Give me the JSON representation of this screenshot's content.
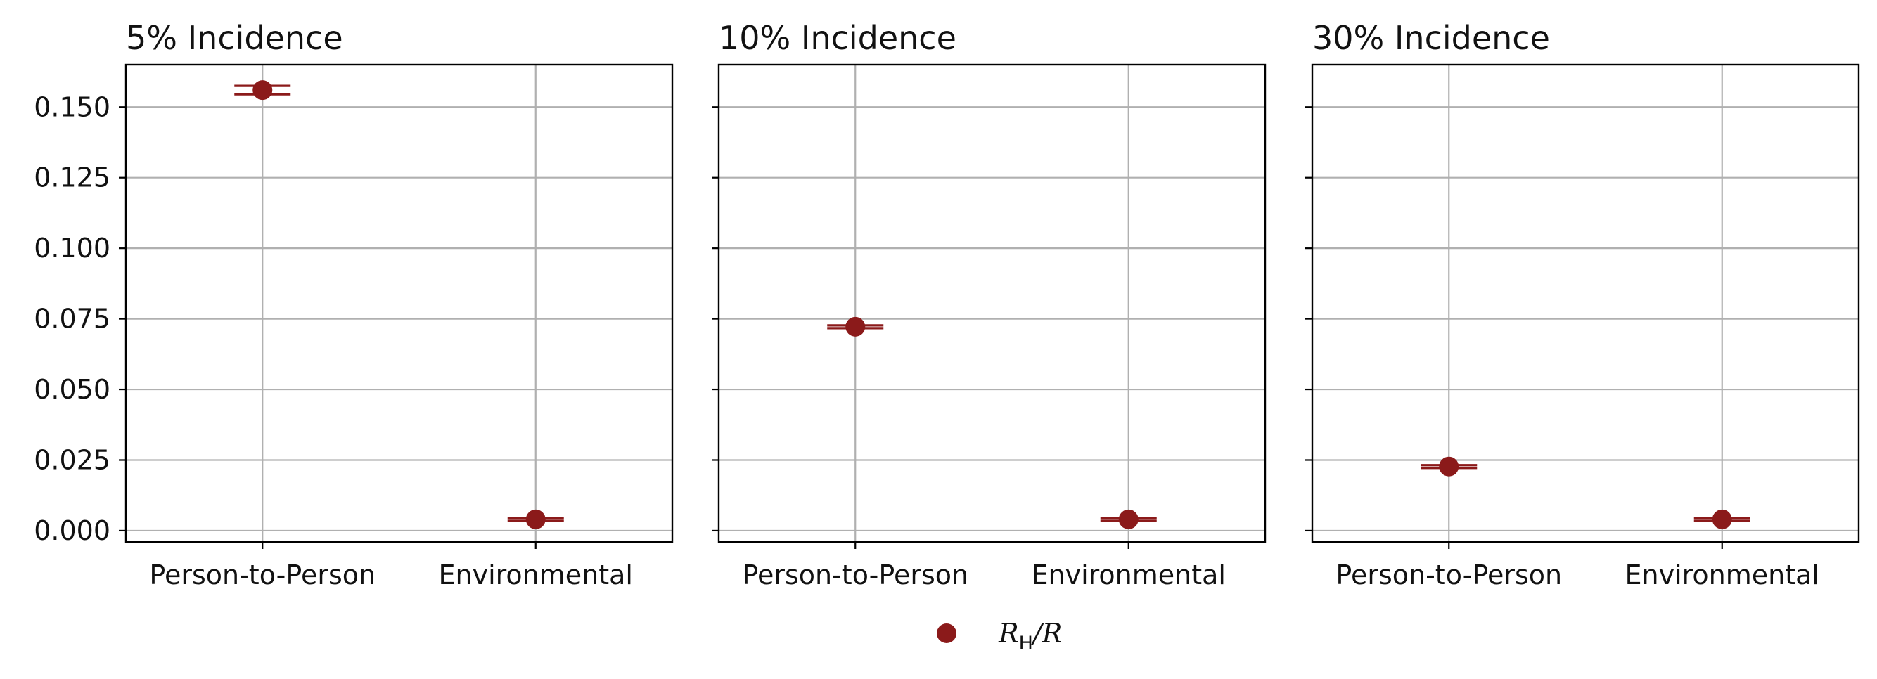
{
  "chart_data": [
    {
      "type": "scatter",
      "title": "5% Incidence",
      "categories": [
        "Person-to-Person",
        "Environmental"
      ],
      "ylim": [
        -0.004,
        0.165
      ],
      "yticks": [
        "0.000",
        "0.025",
        "0.050",
        "0.075",
        "0.100",
        "0.125",
        "0.150"
      ],
      "grid": true,
      "series": [
        {
          "name": "R_H/R",
          "values": [
            0.156,
            0.004
          ],
          "error_low": [
            0.1545,
            0.0035
          ],
          "error_high": [
            0.1575,
            0.0045
          ]
        }
      ]
    },
    {
      "type": "scatter",
      "title": "10% Incidence",
      "categories": [
        "Person-to-Person",
        "Environmental"
      ],
      "ylim": [
        -0.004,
        0.165
      ],
      "yticks": [
        "0.000",
        "0.025",
        "0.050",
        "0.075",
        "0.100",
        "0.125",
        "0.150"
      ],
      "grid": true,
      "series": [
        {
          "name": "R_H/R",
          "values": [
            0.0722,
            0.004
          ],
          "error_low": [
            0.0717,
            0.0035
          ],
          "error_high": [
            0.0727,
            0.0045
          ]
        }
      ]
    },
    {
      "type": "scatter",
      "title": "30% Incidence",
      "categories": [
        "Person-to-Person",
        "Environmental"
      ],
      "ylim": [
        -0.004,
        0.165
      ],
      "yticks": [
        "0.000",
        "0.025",
        "0.050",
        "0.075",
        "0.100",
        "0.125",
        "0.150"
      ],
      "grid": true,
      "series": [
        {
          "name": "R_H/R",
          "values": [
            0.0227,
            0.004
          ],
          "error_low": [
            0.0222,
            0.0035
          ],
          "error_high": [
            0.0232,
            0.0045
          ]
        }
      ]
    }
  ],
  "legend": {
    "position": "bottom-center",
    "label_main": "R",
    "label_sub": "H",
    "label_tail": "/R"
  },
  "colors": {
    "marker": "#8b1a1a",
    "grid": "#b0b0b0",
    "axis": "#000000"
  }
}
